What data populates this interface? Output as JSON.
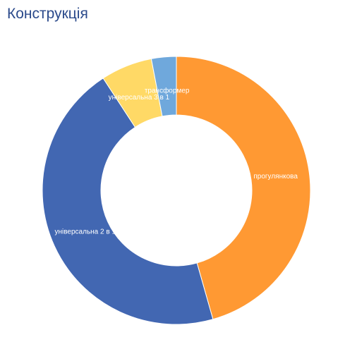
{
  "chart_data": {
    "type": "donut",
    "title": "Конструкція",
    "categories": [
      "прогулянкова",
      "універсальна 2 в 1",
      "універсальна 3 в 1",
      "трансформер"
    ],
    "values": [
      45.6,
      45.2,
      6.2,
      3.0
    ],
    "colors": [
      "#ff9933",
      "#4267b2",
      "#ffd966",
      "#6fa8dc"
    ]
  }
}
